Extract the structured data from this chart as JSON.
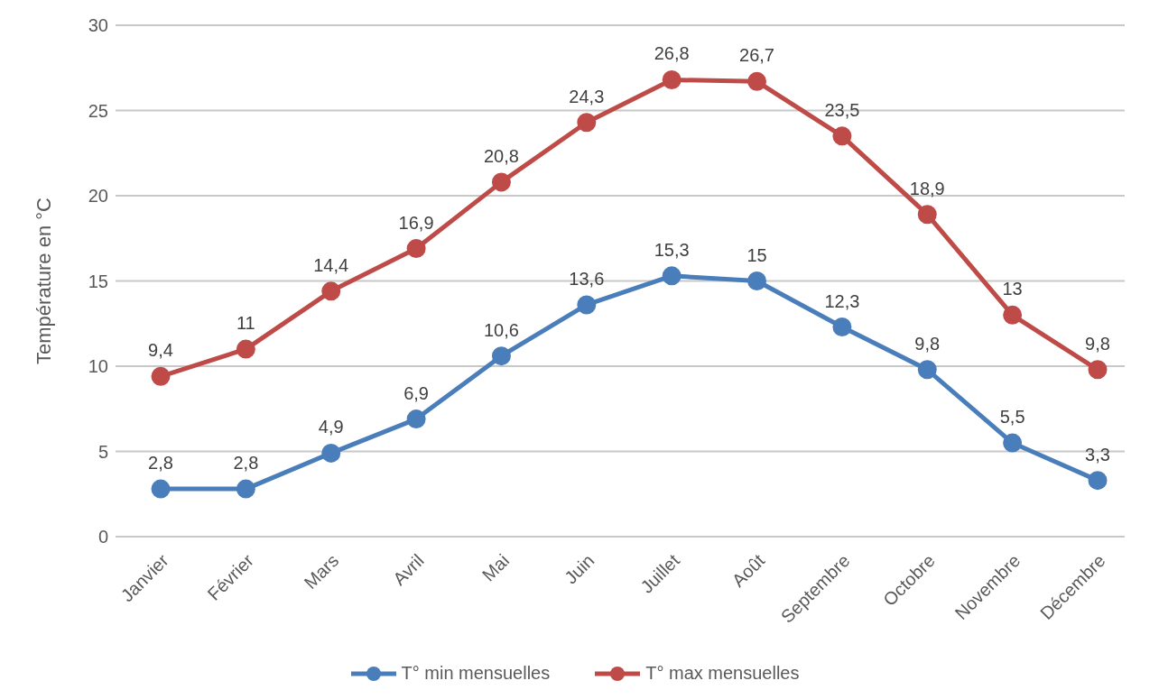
{
  "chart_data": {
    "type": "line",
    "ylabel": "Température en °C",
    "categories": [
      "Janvier",
      "Février",
      "Mars",
      "Avril",
      "Mai",
      "Juin",
      "Juillet",
      "Août",
      "Septembre",
      "Octobre",
      "Novembre",
      "Décembre"
    ],
    "series": [
      {
        "name": "T° min mensuelles",
        "color": "#4a7ebb",
        "values": [
          2.8,
          2.8,
          4.9,
          6.9,
          10.6,
          13.6,
          15.3,
          15,
          12.3,
          9.8,
          5.5,
          3.3
        ],
        "value_labels": [
          "2,8",
          "2,8",
          "4,9",
          "6,9",
          "10,6",
          "13,6",
          "15,3",
          "15",
          "12,3",
          "9,8",
          "5,5",
          "3,3"
        ]
      },
      {
        "name": "T° max mensuelles",
        "color": "#be4b48",
        "values": [
          9.4,
          11,
          14.4,
          16.9,
          20.8,
          24.3,
          26.8,
          26.7,
          23.5,
          18.9,
          13,
          9.8
        ],
        "value_labels": [
          "9,4",
          "11",
          "14,4",
          "16,9",
          "20,8",
          "24,3",
          "26,8",
          "26,7",
          "23,5",
          "18,9",
          "13",
          "9,8"
        ]
      }
    ],
    "ylim": [
      0,
      30
    ],
    "yticks": [
      0,
      5,
      10,
      15,
      20,
      25,
      30
    ],
    "grid": "y",
    "legend": "bottom",
    "marker": "circle",
    "line_style": "solid"
  }
}
